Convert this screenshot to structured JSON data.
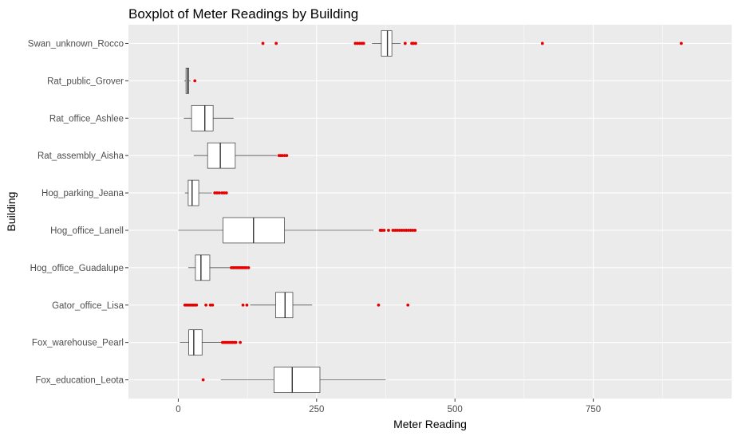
{
  "chart_data": {
    "type": "boxplot",
    "orientation": "horizontal",
    "title": "Boxplot of Meter Readings by Building",
    "xlabel": "Meter Reading",
    "ylabel": "Building",
    "xlim": [
      -90,
      1000
    ],
    "x_ticks": [
      0,
      250,
      500,
      750
    ],
    "x_tick_labels": [
      "0",
      "250",
      "500",
      "750"
    ],
    "grid": true,
    "colors": {
      "panel_background": "#ebebeb",
      "grid_line": "#ffffff",
      "box_fill": "#ffffff",
      "box_stroke": "#333333",
      "outlier": "#e60000"
    },
    "categories": [
      "Swan_unknown_Rocco",
      "Rat_public_Grover",
      "Rat_office_Ashlee",
      "Rat_assembly_Aisha",
      "Hog_parking_Jeana",
      "Hog_office_Lanell",
      "Hog_office_Guadalupe",
      "Gator_office_Lisa",
      "Fox_warehouse_Pearl",
      "Fox_education_Leota"
    ],
    "boxes": [
      {
        "whisker_low": 350,
        "q1": 367,
        "median": 378,
        "q3": 386,
        "whisker_high": 402,
        "outliers": [
          153,
          177,
          320,
          324,
          328,
          332,
          335,
          410,
          422,
          425,
          429,
          658,
          909
        ]
      },
      {
        "whisker_low": 11,
        "q1": 14,
        "median": 17,
        "q3": 19,
        "whisker_high": 22,
        "outliers": [
          30
        ]
      },
      {
        "whisker_low": 10,
        "q1": 24,
        "median": 48,
        "q3": 63,
        "whisker_high": 100,
        "outliers": []
      },
      {
        "whisker_low": 28,
        "q1": 53,
        "median": 76,
        "q3": 103,
        "whisker_high": 178,
        "outliers": [
          182,
          185,
          188,
          192,
          196
        ]
      },
      {
        "whisker_low": 12,
        "q1": 18,
        "median": 25,
        "q3": 37,
        "whisker_high": 61,
        "outliers": [
          66,
          70,
          74,
          79,
          83,
          87
        ]
      },
      {
        "whisker_low": 0,
        "q1": 81,
        "median": 136,
        "q3": 192,
        "whisker_high": 353,
        "outliers": [
          365,
          368,
          372,
          380,
          388,
          392,
          396,
          400,
          404,
          408,
          412,
          416,
          420,
          424,
          428
        ]
      },
      {
        "whisker_low": 18,
        "q1": 31,
        "median": 41,
        "q3": 57,
        "whisker_high": 94,
        "outliers": [
          96,
          99,
          102,
          105,
          108,
          111,
          114,
          117,
          120,
          123,
          127
        ]
      },
      {
        "whisker_low": 130,
        "q1": 176,
        "median": 193,
        "q3": 207,
        "whisker_high": 242,
        "outliers": [
          12,
          15,
          18,
          21,
          24,
          27,
          30,
          33,
          50,
          58,
          62,
          117,
          124,
          362,
          415
        ]
      },
      {
        "whisker_low": 3,
        "q1": 19,
        "median": 28,
        "q3": 43,
        "whisker_high": 78,
        "outliers": [
          80,
          83,
          86,
          89,
          92,
          95,
          98,
          101,
          104,
          112
        ]
      },
      {
        "whisker_low": 77,
        "q1": 173,
        "median": 206,
        "q3": 256,
        "whisker_high": 375,
        "outliers": [
          45
        ]
      }
    ]
  }
}
